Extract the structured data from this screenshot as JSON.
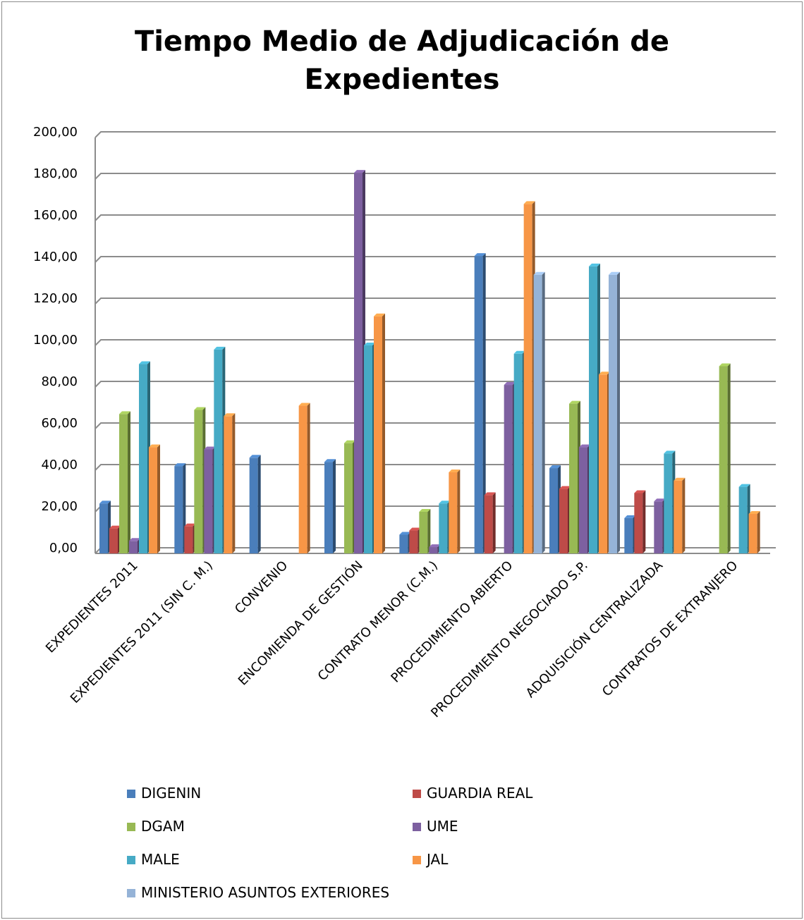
{
  "chart_data": {
    "type": "bar",
    "title_line1": "Tiempo Medio de Adjudicación de",
    "title_line2": "Expedientes",
    "xlabel": "",
    "ylabel": "",
    "ylim": [
      0,
      200
    ],
    "y_ticks": [
      "0,00",
      "20,00",
      "40,00",
      "60,00",
      "80,00",
      "100,00",
      "120,00",
      "140,00",
      "160,00",
      "180,00",
      "200,00"
    ],
    "grid": true,
    "legend_position": "bottom",
    "categories": [
      "EXPEDIENTES 2011",
      "EXPEDIENTES 2011 (SIN C. M.)",
      "CONVENIO",
      "ENCOMIENDA DE GESTIÓN",
      "CONTRATO MENOR (C.M.)",
      "PROCEDIMIENTO ABIERTO",
      "PROCEDIMIENTO NEGOCIADO S.P.",
      "ADQUISICIÓN CENTRALIZADA",
      "CONTRATOS DE EXTRANJERO"
    ],
    "series": [
      {
        "name": "DIGENIN",
        "color": "#4a7ebb",
        "values": [
          24,
          42,
          46,
          44,
          9,
          143,
          41,
          17,
          null
        ]
      },
      {
        "name": "GUARDIA REAL",
        "color": "#be4b48",
        "values": [
          12,
          13,
          null,
          null,
          11,
          28,
          31,
          29,
          null
        ]
      },
      {
        "name": "DGAM",
        "color": "#98b954",
        "values": [
          67,
          69,
          null,
          53,
          20,
          null,
          72,
          null,
          90
        ]
      },
      {
        "name": "UME",
        "color": "#7d60a0",
        "values": [
          6,
          50,
          null,
          183,
          3,
          81,
          51,
          25,
          null
        ]
      },
      {
        "name": "MALE",
        "color": "#46aac5",
        "values": [
          91,
          98,
          null,
          100,
          24,
          96,
          138,
          48,
          32
        ]
      },
      {
        "name": "JAL",
        "color": "#f79646",
        "values": [
          51,
          66,
          71,
          114,
          39,
          168,
          86,
          35,
          19
        ]
      },
      {
        "name": "MINISTERIO ASUNTOS EXTERIORES",
        "color": "#95b3d7",
        "values": [
          null,
          null,
          null,
          null,
          null,
          134,
          134,
          null,
          null
        ]
      }
    ]
  }
}
